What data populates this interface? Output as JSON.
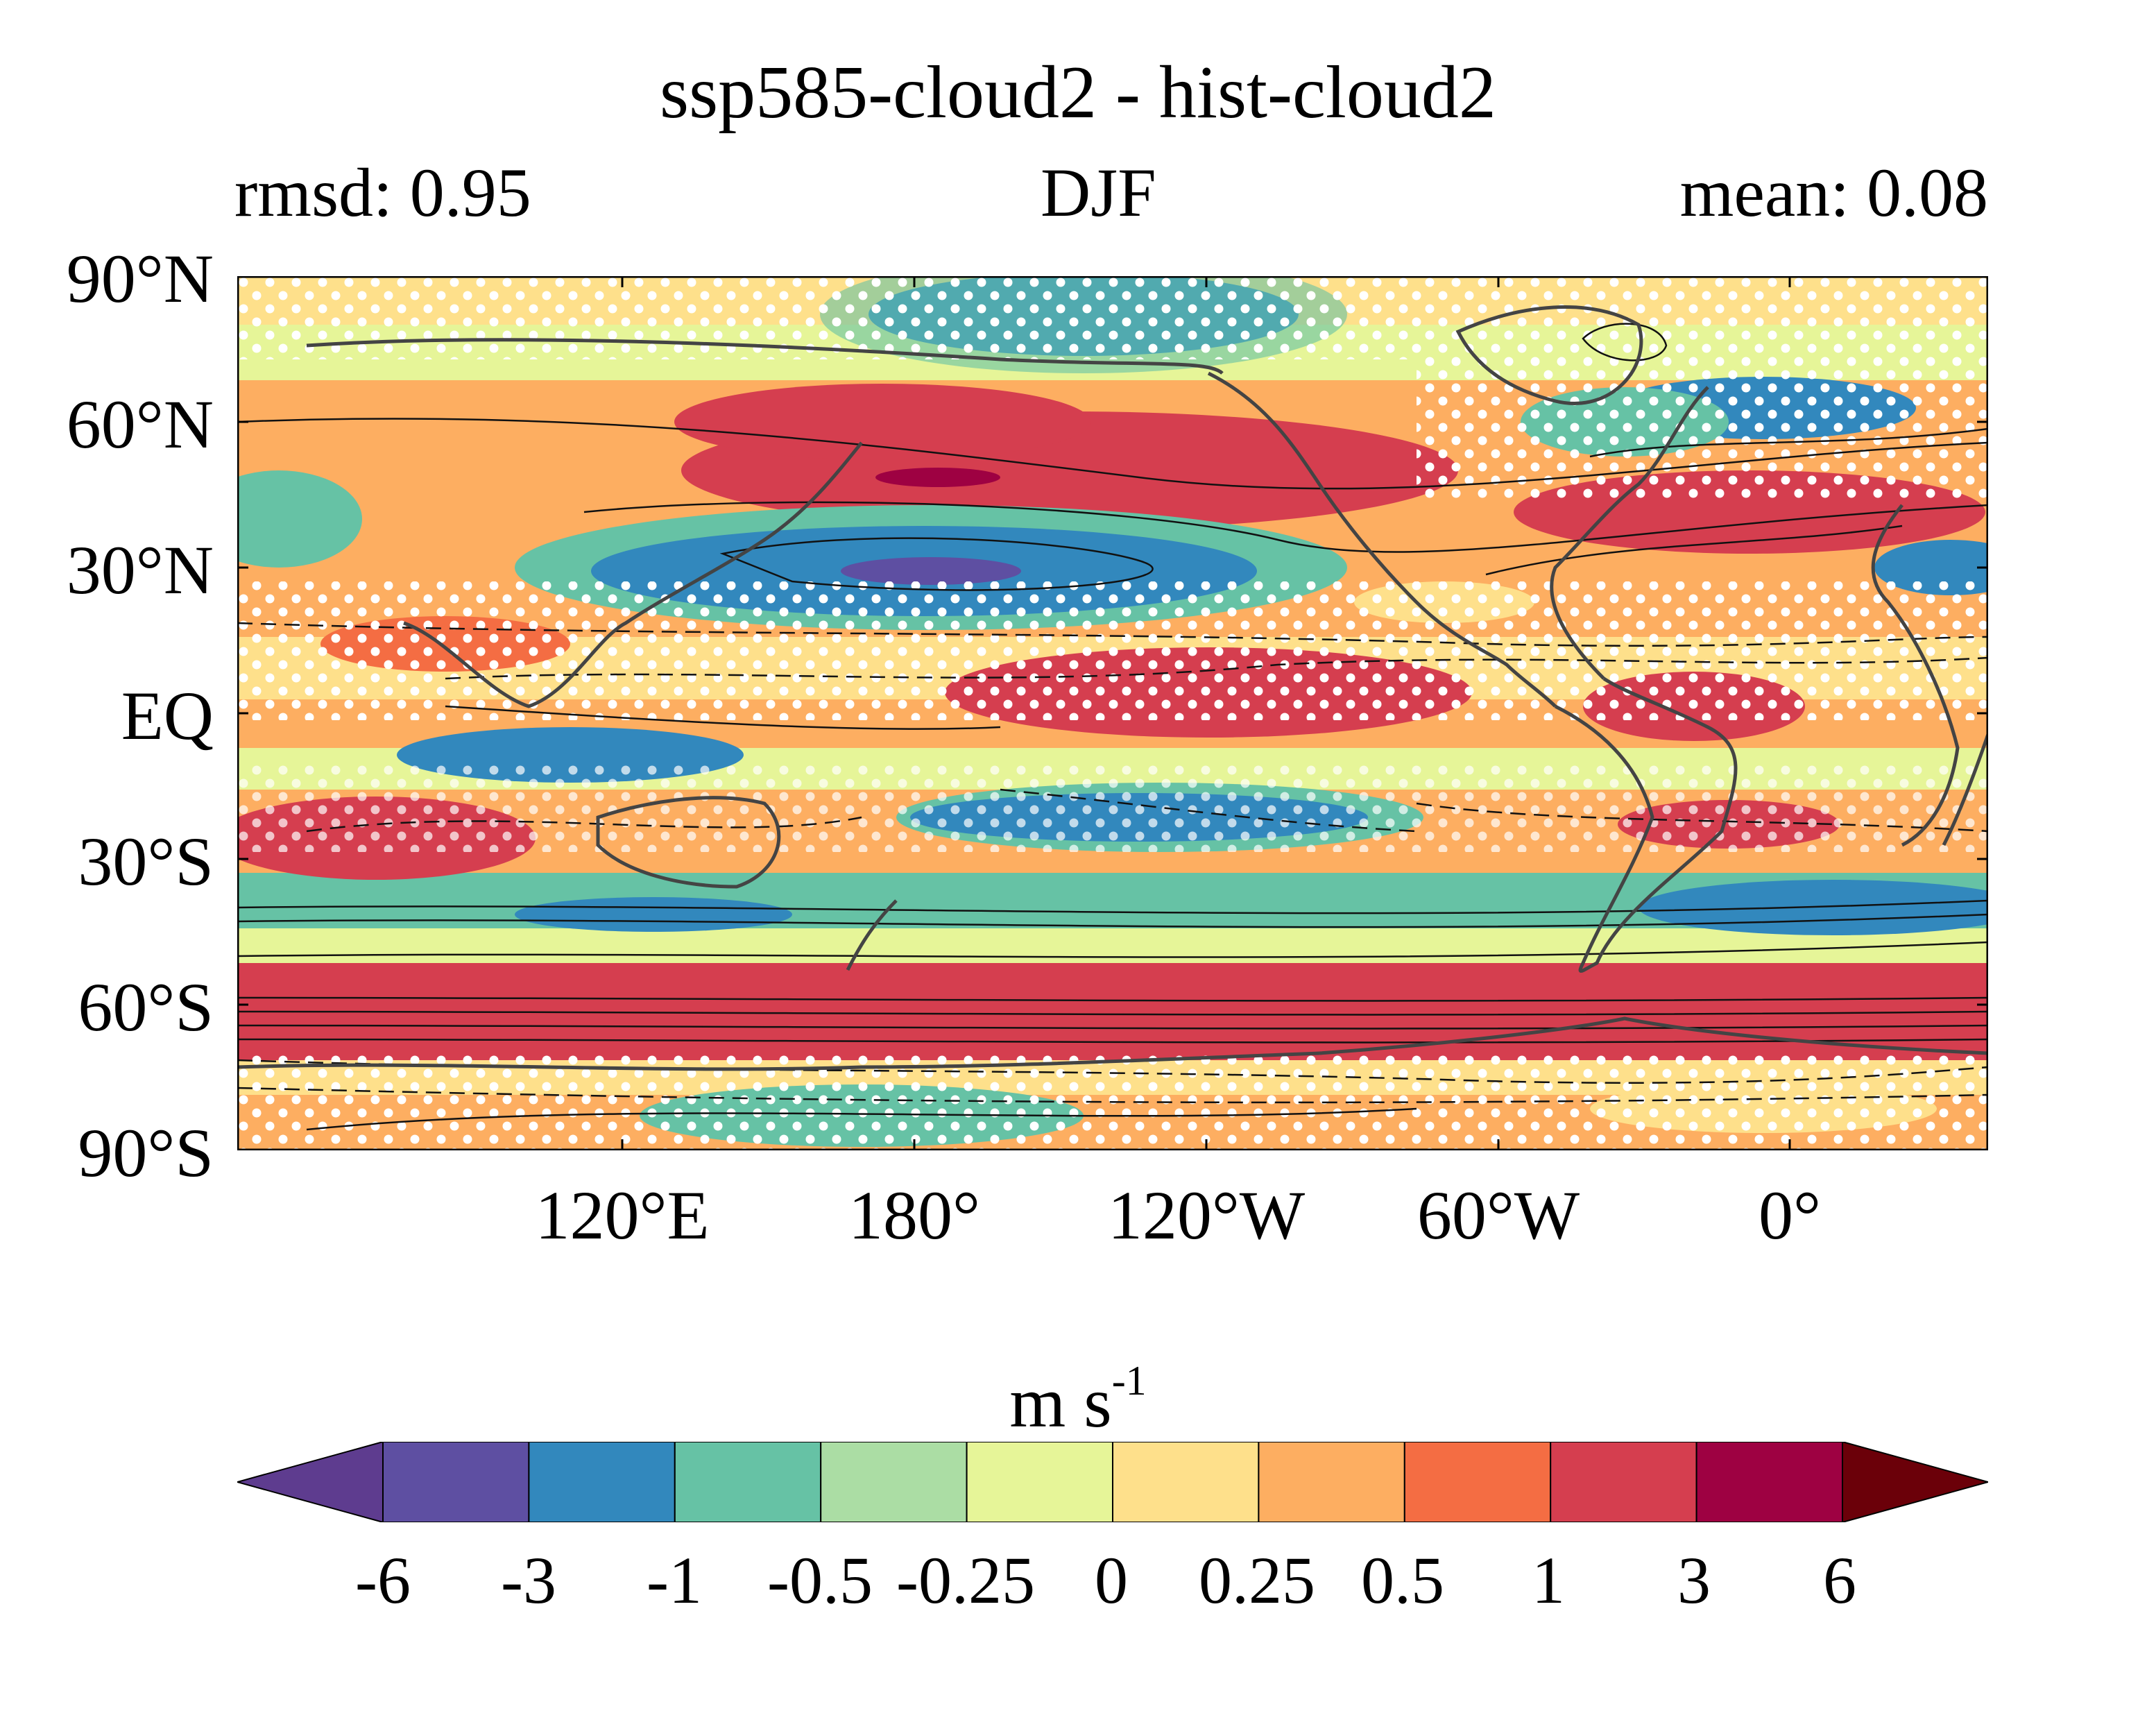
{
  "title": "ssp585-cloud2 - hist-cloud2",
  "left_subtitle": "rmsd: 0.95",
  "center_subtitle": "DJF",
  "right_subtitle": "mean: 0.08",
  "map": {
    "lat_ticks": [
      "90°N",
      "60°N",
      "30°N",
      "EQ",
      "30°S",
      "60°S",
      "90°S"
    ],
    "lon_ticks": [
      "120°E",
      "180°",
      "120°W",
      "60°W",
      "0°"
    ]
  },
  "colorbar": {
    "unit_main": "m s",
    "unit_sup": "-1",
    "labels": [
      "-6",
      "-3",
      "-1",
      "-0.5",
      "-0.25",
      "0",
      "0.25",
      "0.5",
      "1",
      "3",
      "6"
    ],
    "colors": {
      "below": "#5e3c8f",
      "bins": [
        "#5e4fa2",
        "#3288bd",
        "#66c2a5",
        "#abdda4",
        "#e6f598",
        "#fee08b",
        "#fdae61",
        "#f46d43",
        "#d53e4f",
        "#9e0142"
      ],
      "above": "#6b0009"
    }
  }
}
